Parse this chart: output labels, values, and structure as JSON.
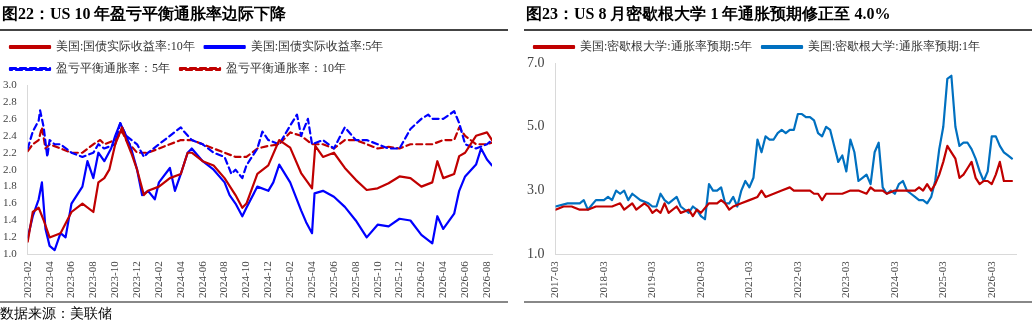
{
  "chart_data": [
    {
      "type": "line",
      "title": "图22：US 10 年盈亏平衡通胀率边际下降",
      "marker": "none",
      "grid": false,
      "legend": "top",
      "ylim": [
        1.0,
        3.0
      ],
      "yticks": [
        {
          "value": 1.0,
          "label": "1.0"
        },
        {
          "value": 1.2,
          "label": "1.2"
        },
        {
          "value": 1.4,
          "label": "1.4"
        },
        {
          "value": 1.6,
          "label": "1.6"
        },
        {
          "value": 1.8,
          "label": "1.8"
        },
        {
          "value": 2.0,
          "label": "2.0"
        },
        {
          "value": 2.2,
          "label": "2.2"
        },
        {
          "value": 2.4,
          "label": "2.4"
        },
        {
          "value": 2.6,
          "label": "2.6"
        },
        {
          "value": 2.8,
          "label": "2.8"
        },
        {
          "value": 3.0,
          "label": "3.0"
        }
      ],
      "xlim": [
        "2023-02",
        "2026-08-15"
      ],
      "xticks": [
        "2023-02",
        "2023-04",
        "2023-06",
        "2023-08",
        "2023-10",
        "2023-12",
        "2024-02",
        "2024-04",
        "2024-06",
        "2024-08",
        "2024-10",
        "2024-12",
        "2025-02",
        "2025-04",
        "2025-06",
        "2025-08",
        "2025-10",
        "2025-12",
        "2026-02",
        "2026-04",
        "2026-06",
        "2026-08"
      ],
      "annotations": [
        "数据来源：美联储"
      ],
      "series": [
        {
          "name": "美国:国债实际收益率:10年",
          "color": "#c00000",
          "x": [
            "2023-02",
            "2023-02-15",
            "2023-03",
            "2023-03-15",
            "2023-04",
            "2023-05",
            "2023-06",
            "2023-07",
            "2023-08",
            "2023-08-15",
            "2023-09",
            "2023-09-15",
            "2023-10",
            "2023-10-20",
            "2023-11",
            "2023-11-15",
            "2023-12",
            "2023-12-20",
            "2024-01",
            "2024-02",
            "2024-03",
            "2024-04",
            "2024-04-20",
            "2024-05",
            "2024-06",
            "2024-07",
            "2024-08",
            "2024-09",
            "2024-09-20",
            "2024-10",
            "2024-11",
            "2024-12",
            "2025-01",
            "2025-02",
            "2025-03",
            "2025-04",
            "2025-04-10",
            "2025-05",
            "2025-06",
            "2025-07",
            "2025-08",
            "2025-09",
            "2025-10",
            "2025-11",
            "2025-12",
            "2026-01",
            "2026-02",
            "2026-03",
            "2026-03-15",
            "2026-04",
            "2026-05",
            "2026-05-15",
            "2026-06",
            "2026-07",
            "2026-08",
            "2026-08-15"
          ],
          "values": [
            1.15,
            1.5,
            1.55,
            1.4,
            1.2,
            1.25,
            1.5,
            1.6,
            1.5,
            1.85,
            1.9,
            2.0,
            2.3,
            2.5,
            2.35,
            2.2,
            2.0,
            1.7,
            1.75,
            1.8,
            1.9,
            1.95,
            2.2,
            2.2,
            2.1,
            2.05,
            1.9,
            1.7,
            1.55,
            1.6,
            1.95,
            2.05,
            2.35,
            2.26,
            1.96,
            1.78,
            2.28,
            2.15,
            2.2,
            2.02,
            1.88,
            1.76,
            1.78,
            1.84,
            1.92,
            1.9,
            1.8,
            1.85,
            2.1,
            1.9,
            1.95,
            2.16,
            2.2,
            2.4,
            2.44,
            2.35
          ]
        },
        {
          "name": "美国:国债实际收益率:5年",
          "color": "#0000ff",
          "x": [
            "2023-02",
            "2023-02-15",
            "2023-03",
            "2023-03-10",
            "2023-03-20",
            "2023-04",
            "2023-04-15",
            "2023-05",
            "2023-05-15",
            "2023-06",
            "2023-07",
            "2023-07-15",
            "2023-08",
            "2023-08-15",
            "2023-09",
            "2023-09-20",
            "2023-10",
            "2023-10-15",
            "2023-11",
            "2023-11-15",
            "2023-12",
            "2023-12-15",
            "2024-01",
            "2024-01-20",
            "2024-02",
            "2024-03",
            "2024-03-15",
            "2024-04",
            "2024-04-20",
            "2024-05",
            "2024-06",
            "2024-07",
            "2024-08",
            "2024-08-15",
            "2024-09",
            "2024-09-20",
            "2024-10",
            "2024-11",
            "2024-12",
            "2024-12-15",
            "2025-01",
            "2025-02",
            "2025-03",
            "2025-03-15",
            "2025-04",
            "2025-04-08",
            "2025-05",
            "2025-06",
            "2025-07",
            "2025-08",
            "2025-09",
            "2025-10",
            "2025-11",
            "2025-12",
            "2026-01",
            "2026-02",
            "2026-03",
            "2026-03-15",
            "2026-04",
            "2026-05",
            "2026-05-15",
            "2026-06",
            "2026-07",
            "2026-07-15",
            "2026-08",
            "2026-08-15"
          ],
          "values": [
            1.2,
            1.45,
            1.65,
            1.85,
            1.3,
            1.1,
            1.05,
            1.25,
            1.2,
            1.6,
            1.8,
            2.1,
            1.9,
            2.2,
            2.1,
            2.25,
            2.4,
            2.55,
            2.4,
            2.25,
            2.0,
            1.7,
            1.75,
            1.65,
            1.85,
            2.02,
            1.75,
            1.95,
            2.2,
            2.25,
            2.1,
            2.0,
            1.85,
            1.7,
            1.6,
            1.45,
            1.55,
            1.8,
            1.75,
            1.85,
            2.06,
            1.85,
            1.52,
            1.38,
            1.25,
            1.72,
            1.75,
            1.68,
            1.56,
            1.4,
            1.2,
            1.35,
            1.33,
            1.42,
            1.4,
            1.23,
            1.13,
            1.45,
            1.3,
            1.48,
            1.75,
            1.92,
            2.06,
            2.25,
            2.12,
            2.05
          ]
        },
        {
          "name": "盈亏平衡通胀率：5年",
          "color": "#0000ff",
          "line_style": "dashed",
          "x": [
            "2023-02",
            "2023-02-15",
            "2023-03",
            "2023-03-05",
            "2023-03-15",
            "2023-03-25",
            "2023-04",
            "2023-04-15",
            "2023-05",
            "2023-06",
            "2023-07",
            "2023-08",
            "2023-08-15",
            "2023-09",
            "2023-10",
            "2023-10-15",
            "2023-11",
            "2023-12",
            "2023-12-20",
            "2024-01",
            "2024-02",
            "2024-03",
            "2024-04",
            "2024-04-10",
            "2024-05",
            "2024-06",
            "2024-07",
            "2024-08",
            "2024-08-20",
            "2024-09",
            "2024-09-20",
            "2024-10",
            "2024-11",
            "2024-11-15",
            "2024-12",
            "2025-01",
            "2025-02",
            "2025-02-20",
            "2025-03",
            "2025-03-20",
            "2025-04",
            "2025-05",
            "2025-06",
            "2025-07",
            "2025-08",
            "2025-09",
            "2025-10",
            "2025-11",
            "2025-12",
            "2026-01",
            "2026-02",
            "2026-02-20",
            "2026-03",
            "2026-04",
            "2026-05",
            "2026-05-15",
            "2026-06",
            "2026-07",
            "2026-08",
            "2026-08-15"
          ],
          "values": [
            2.25,
            2.45,
            2.58,
            2.7,
            2.5,
            2.15,
            2.35,
            2.3,
            2.3,
            2.2,
            2.15,
            2.2,
            2.3,
            2.25,
            2.3,
            2.55,
            2.4,
            2.3,
            2.15,
            2.2,
            2.3,
            2.4,
            2.5,
            2.45,
            2.35,
            2.3,
            2.2,
            2.15,
            1.95,
            2.0,
            1.9,
            2.05,
            2.25,
            2.45,
            2.35,
            2.3,
            2.52,
            2.65,
            2.4,
            2.6,
            2.3,
            2.35,
            2.25,
            2.5,
            2.35,
            2.35,
            2.3,
            2.25,
            2.25,
            2.48,
            2.6,
            2.65,
            2.6,
            2.6,
            2.69,
            2.55,
            2.3,
            2.25,
            2.3,
            2.35
          ]
        },
        {
          "name": "盈亏平衡通胀率：10年",
          "color": "#c00000",
          "line_style": "dashed",
          "x": [
            "2023-02",
            "2023-02-15",
            "2023-03",
            "2023-03-10",
            "2023-03-20",
            "2023-04",
            "2023-05",
            "2023-06",
            "2023-07",
            "2023-08",
            "2023-08-20",
            "2023-09",
            "2023-10",
            "2023-10-20",
            "2023-11",
            "2023-12",
            "2024-01",
            "2024-02",
            "2024-03",
            "2024-04",
            "2024-05",
            "2024-06",
            "2024-07",
            "2024-08",
            "2024-09",
            "2024-10",
            "2024-11",
            "2024-12",
            "2025-01",
            "2025-02",
            "2025-03",
            "2025-04",
            "2025-05",
            "2025-06",
            "2025-07",
            "2025-08",
            "2025-09",
            "2025-10",
            "2025-11",
            "2025-12",
            "2026-01",
            "2026-02",
            "2026-03",
            "2026-04",
            "2026-05",
            "2026-05-15",
            "2026-06",
            "2026-07",
            "2026-08",
            "2026-08-15"
          ],
          "values": [
            2.22,
            2.3,
            2.35,
            2.5,
            2.25,
            2.3,
            2.25,
            2.2,
            2.2,
            2.3,
            2.35,
            2.3,
            2.35,
            2.45,
            2.35,
            2.2,
            2.2,
            2.25,
            2.3,
            2.35,
            2.35,
            2.3,
            2.25,
            2.2,
            2.15,
            2.15,
            2.25,
            2.28,
            2.3,
            2.44,
            2.4,
            2.3,
            2.3,
            2.25,
            2.35,
            2.35,
            2.3,
            2.25,
            2.27,
            2.25,
            2.3,
            2.3,
            2.3,
            2.35,
            2.35,
            2.5,
            2.4,
            2.3,
            2.3,
            2.32
          ]
        }
      ]
    },
    {
      "type": "line",
      "title": "图23：US 8 月密歇根大学 1 年通胀预期修正至 4.0%",
      "marker": "none",
      "grid": false,
      "legend": "top",
      "ylim": [
        1.0,
        7.0
      ],
      "yticks": [
        {
          "value": 1.0,
          "label": "1.0"
        },
        {
          "value": 3.0,
          "label": "3.0"
        },
        {
          "value": 5.0,
          "label": "5.0"
        },
        {
          "value": 7.0,
          "label": "7.0"
        }
      ],
      "xlim": [
        "2017-03",
        "2026-09"
      ],
      "xticks": [
        "2017-03",
        "2018-03",
        "2019-03",
        "2020-03",
        "2021-03",
        "2022-03",
        "2023-03",
        "2024-03",
        "2025-03",
        "2026-03"
      ],
      "series": [
        {
          "name": "美国:密歇根大学:通胀率预期:5年",
          "color": "#c00000",
          "x": [
            "2017-03",
            "2017-05",
            "2017-07",
            "2017-09",
            "2017-11",
            "2018-01",
            "2018-05",
            "2018-07",
            "2018-08",
            "2018-10",
            "2018-11",
            "2019-01",
            "2019-02",
            "2019-03",
            "2019-04",
            "2019-05",
            "2019-06",
            "2019-07",
            "2019-09",
            "2019-10",
            "2019-12",
            "2020-01",
            "2020-02",
            "2020-03",
            "2020-05",
            "2020-07",
            "2020-08",
            "2020-09",
            "2020-10",
            "2020-11",
            "2021-01",
            "2021-03",
            "2021-05",
            "2021-06",
            "2021-07",
            "2021-09",
            "2021-11",
            "2022-01",
            "2022-02",
            "2022-03",
            "2022-06",
            "2022-07",
            "2022-08",
            "2022-09",
            "2022-10",
            "2022-12",
            "2023-02",
            "2023-04",
            "2023-06",
            "2023-08",
            "2023-09",
            "2023-10",
            "2023-12",
            "2024-01",
            "2024-03",
            "2024-06",
            "2024-08",
            "2024-09",
            "2024-10",
            "2024-11",
            "2024-12",
            "2025-01",
            "2025-02",
            "2025-03",
            "2025-04",
            "2025-05",
            "2025-06",
            "2025-07",
            "2025-08",
            "2025-09",
            "2025-10",
            "2025-11",
            "2025-12",
            "2026-01",
            "2026-02",
            "2026-03",
            "2026-04",
            "2026-05",
            "2026-06",
            "2026-07",
            "2026-08"
          ],
          "values": [
            2.4,
            2.5,
            2.5,
            2.4,
            2.4,
            2.5,
            2.5,
            2.6,
            2.4,
            2.6,
            2.4,
            2.6,
            2.5,
            2.3,
            2.4,
            2.3,
            2.6,
            2.3,
            2.5,
            2.3,
            2.4,
            2.2,
            2.4,
            2.3,
            2.6,
            2.6,
            2.7,
            2.6,
            2.4,
            2.5,
            2.6,
            2.7,
            2.8,
            3.0,
            2.8,
            2.9,
            3.0,
            3.1,
            3.0,
            3.0,
            3.0,
            2.9,
            2.9,
            2.7,
            2.9,
            2.9,
            2.9,
            3.0,
            3.0,
            2.9,
            3.1,
            3.0,
            3.0,
            2.9,
            3.0,
            3.0,
            3.0,
            3.1,
            3.0,
            3.2,
            3.0,
            3.2,
            3.5,
            3.9,
            4.4,
            4.2,
            4.0,
            3.4,
            3.5,
            3.7,
            3.9,
            3.4,
            3.2,
            3.3,
            3.3,
            3.2,
            3.5,
            3.9,
            3.3,
            3.3,
            3.3
          ]
        },
        {
          "name": "美国:密歇根大学:通胀率预期:1年",
          "color": "#0070c0",
          "x": [
            "2017-03",
            "2017-06",
            "2017-09",
            "2017-10",
            "2017-11",
            "2018-01",
            "2018-03",
            "2018-04",
            "2018-05",
            "2018-06",
            "2018-07",
            "2018-08",
            "2018-09",
            "2018-10",
            "2018-12",
            "2019-02",
            "2019-03",
            "2019-04",
            "2019-05",
            "2019-06",
            "2019-07",
            "2019-09",
            "2019-10",
            "2019-12",
            "2020-01",
            "2020-02",
            "2020-03",
            "2020-04",
            "2020-05",
            "2020-06",
            "2020-07",
            "2020-08",
            "2020-09",
            "2020-10",
            "2020-11",
            "2020-12",
            "2021-01",
            "2021-02",
            "2021-03",
            "2021-04",
            "2021-05",
            "2021-06",
            "2021-07",
            "2021-08",
            "2021-09",
            "2021-10",
            "2021-11",
            "2021-12",
            "2022-01",
            "2022-02",
            "2022-03",
            "2022-04",
            "2022-05",
            "2022-06",
            "2022-07",
            "2022-08",
            "2022-09",
            "2022-10",
            "2022-11",
            "2022-12",
            "2023-01",
            "2023-02",
            "2023-03",
            "2023-04",
            "2023-05",
            "2023-06",
            "2023-07",
            "2023-08",
            "2023-09",
            "2023-10",
            "2023-11",
            "2023-12",
            "2024-01",
            "2024-02",
            "2024-03",
            "2024-04",
            "2024-05",
            "2024-06",
            "2024-07",
            "2024-08",
            "2024-09",
            "2024-10",
            "2024-11",
            "2024-12",
            "2025-01",
            "2025-02",
            "2025-03",
            "2025-04",
            "2025-05",
            "2025-06",
            "2025-07",
            "2025-08",
            "2025-09",
            "2025-10",
            "2025-11",
            "2025-12",
            "2026-01",
            "2026-02",
            "2026-03",
            "2026-04",
            "2026-05",
            "2026-06",
            "2026-07",
            "2026-08"
          ],
          "values": [
            2.5,
            2.6,
            2.6,
            2.7,
            2.4,
            2.7,
            2.7,
            2.8,
            2.7,
            3.0,
            2.9,
            3.0,
            2.7,
            2.9,
            2.7,
            2.6,
            2.5,
            2.5,
            2.9,
            2.7,
            2.6,
            2.8,
            2.5,
            2.3,
            2.5,
            2.4,
            2.2,
            2.1,
            3.2,
            3.0,
            3.0,
            3.1,
            2.6,
            2.6,
            2.8,
            2.5,
            3.0,
            3.3,
            3.1,
            3.4,
            4.6,
            4.2,
            4.7,
            4.6,
            4.6,
            4.8,
            4.9,
            4.8,
            4.9,
            4.9,
            5.4,
            5.4,
            5.3,
            5.3,
            5.2,
            4.8,
            4.7,
            5.0,
            4.9,
            4.4,
            3.9,
            4.1,
            3.6,
            4.6,
            4.2,
            3.3,
            3.4,
            3.5,
            3.2,
            4.2,
            4.5,
            3.1,
            2.9,
            3.0,
            2.9,
            3.2,
            3.3,
            3.0,
            2.9,
            2.8,
            2.7,
            2.7,
            2.6,
            2.8,
            3.3,
            4.3,
            5.0,
            6.5,
            6.6,
            5.0,
            4.4,
            4.5,
            4.5,
            4.3,
            4.0,
            3.6,
            3.3,
            3.6,
            4.7,
            4.7,
            4.4,
            4.2,
            4.1,
            4.0
          ]
        }
      ]
    }
  ]
}
